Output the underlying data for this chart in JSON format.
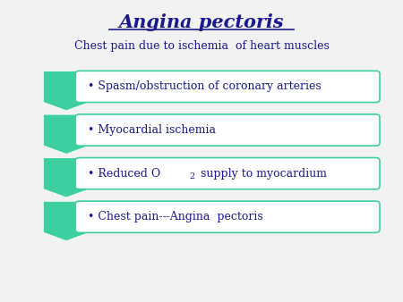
{
  "title": "Angina pectoris",
  "subtitle": "Chest pain due to ischemia  of heart muscles",
  "title_color": "#1a1a8c",
  "subtitle_color": "#1a1a8c",
  "background_color": "#f2f2f2",
  "arrow_color": "#3ecfa0",
  "box_color": "#ffffff",
  "box_edge_color": "#3ecfa0",
  "text_color": "#1a1a8c",
  "items": [
    "Spasm/obstruction of coronary arteries",
    "Myocardial ischemia",
    "Reduced O₂ supply to myocardium",
    "Chest pain---Angina  pectoris"
  ],
  "figsize": [
    4.5,
    3.38
  ],
  "dpi": 100
}
